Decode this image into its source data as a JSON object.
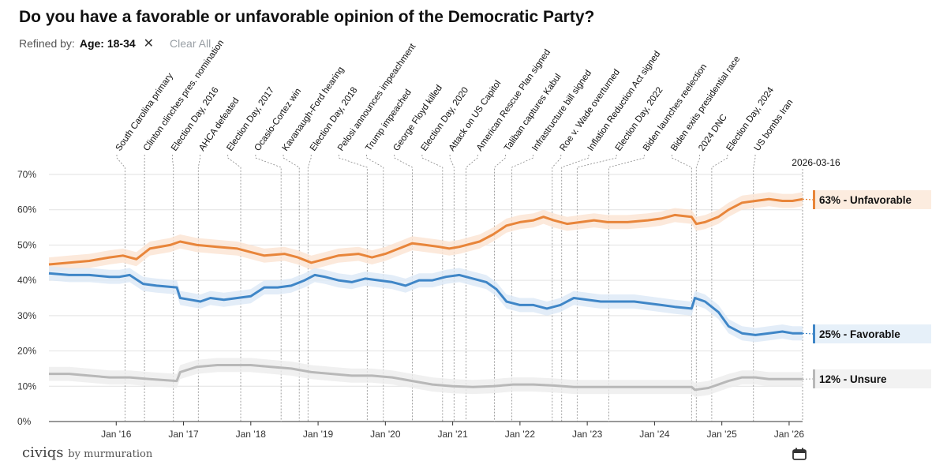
{
  "header": {
    "title": "Do you have a favorable or unfavorable opinion of the Democratic Party?",
    "refined_by_label": "Refined by:",
    "filter_value": "Age: 18-34",
    "remove_filter_glyph": "✕",
    "clear_all_label": "Clear All"
  },
  "footer": {
    "brand": "civiqs",
    "brand_suffix": "by murmuration",
    "calendar_icon": "calendar-icon"
  },
  "colors": {
    "unfavorable": "#e8853a",
    "favorable": "#3f86c7",
    "unsure": "#b8b8b8"
  },
  "chart_data": {
    "type": "line",
    "title": "Do you have a favorable or unfavorable opinion of the Democratic Party?",
    "xlabel": "",
    "ylabel": "",
    "ylim": [
      0,
      70
    ],
    "yticks": [
      0,
      10,
      20,
      30,
      40,
      50,
      60,
      70
    ],
    "ytick_labels": [
      "0%",
      "10%",
      "20%",
      "30%",
      "40%",
      "50%",
      "60%",
      "70%"
    ],
    "xlim": [
      2015.0,
      2026.2
    ],
    "xticks": [
      2016,
      2017,
      2018,
      2019,
      2020,
      2021,
      2022,
      2023,
      2024,
      2025,
      2026
    ],
    "xtick_labels": [
      "Jan '16",
      "Jan '17",
      "Jan '18",
      "Jan '19",
      "Jan '20",
      "Jan '21",
      "Jan '22",
      "Jan '23",
      "Jan '24",
      "Jan '25",
      "Jan '26"
    ],
    "grid": true,
    "end_date_label": "2026-03-16",
    "series": [
      {
        "name": "Unfavorable",
        "end_label": "63% - Unfavorable",
        "color": "#e8853a",
        "points": [
          [
            2015.0,
            44.5
          ],
          [
            2015.3,
            45
          ],
          [
            2015.6,
            45.5
          ],
          [
            2015.9,
            46.5
          ],
          [
            2016.1,
            47
          ],
          [
            2016.3,
            46
          ],
          [
            2016.5,
            49
          ],
          [
            2016.8,
            50
          ],
          [
            2016.95,
            51
          ],
          [
            2017.2,
            50
          ],
          [
            2017.5,
            49.5
          ],
          [
            2017.8,
            49
          ],
          [
            2018.0,
            48
          ],
          [
            2018.2,
            47
          ],
          [
            2018.5,
            47.5
          ],
          [
            2018.7,
            46.5
          ],
          [
            2018.9,
            45
          ],
          [
            2019.1,
            46
          ],
          [
            2019.3,
            47
          ],
          [
            2019.6,
            47.5
          ],
          [
            2019.8,
            46.5
          ],
          [
            2020.0,
            47.5
          ],
          [
            2020.2,
            49
          ],
          [
            2020.4,
            50.5
          ],
          [
            2020.6,
            50
          ],
          [
            2020.8,
            49.5
          ],
          [
            2020.95,
            49
          ],
          [
            2021.1,
            49.5
          ],
          [
            2021.4,
            51
          ],
          [
            2021.6,
            53
          ],
          [
            2021.8,
            55.5
          ],
          [
            2022.0,
            56.5
          ],
          [
            2022.2,
            57
          ],
          [
            2022.35,
            58
          ],
          [
            2022.5,
            57
          ],
          [
            2022.7,
            56
          ],
          [
            2022.9,
            56.5
          ],
          [
            2023.1,
            57
          ],
          [
            2023.3,
            56.5
          ],
          [
            2023.6,
            56.5
          ],
          [
            2023.9,
            57
          ],
          [
            2024.1,
            57.5
          ],
          [
            2024.3,
            58.5
          ],
          [
            2024.55,
            58
          ],
          [
            2024.62,
            56
          ],
          [
            2024.75,
            56.5
          ],
          [
            2024.95,
            58
          ],
          [
            2025.1,
            60
          ],
          [
            2025.3,
            62
          ],
          [
            2025.5,
            62.5
          ],
          [
            2025.7,
            63
          ],
          [
            2025.9,
            62.5
          ],
          [
            2026.05,
            62.5
          ],
          [
            2026.2,
            63
          ]
        ]
      },
      {
        "name": "Favorable",
        "end_label": "25% - Favorable",
        "color": "#3f86c7",
        "points": [
          [
            2015.0,
            42
          ],
          [
            2015.3,
            41.5
          ],
          [
            2015.6,
            41.5
          ],
          [
            2015.9,
            41
          ],
          [
            2016.05,
            41
          ],
          [
            2016.2,
            41.5
          ],
          [
            2016.4,
            39
          ],
          [
            2016.6,
            38.5
          ],
          [
            2016.9,
            38
          ],
          [
            2016.95,
            35
          ],
          [
            2017.1,
            34.5
          ],
          [
            2017.25,
            34
          ],
          [
            2017.4,
            35
          ],
          [
            2017.6,
            34.5
          ],
          [
            2017.8,
            35
          ],
          [
            2018.0,
            35.5
          ],
          [
            2018.2,
            38
          ],
          [
            2018.4,
            38
          ],
          [
            2018.6,
            38.5
          ],
          [
            2018.8,
            40
          ],
          [
            2018.95,
            41.5
          ],
          [
            2019.1,
            41
          ],
          [
            2019.3,
            40
          ],
          [
            2019.5,
            39.5
          ],
          [
            2019.7,
            40.5
          ],
          [
            2019.9,
            40
          ],
          [
            2020.1,
            39.5
          ],
          [
            2020.3,
            38.5
          ],
          [
            2020.5,
            40
          ],
          [
            2020.7,
            40
          ],
          [
            2020.9,
            41
          ],
          [
            2021.1,
            41.5
          ],
          [
            2021.3,
            40.5
          ],
          [
            2021.5,
            39.5
          ],
          [
            2021.65,
            37.5
          ],
          [
            2021.8,
            34
          ],
          [
            2022.0,
            33
          ],
          [
            2022.2,
            33
          ],
          [
            2022.4,
            32
          ],
          [
            2022.6,
            33
          ],
          [
            2022.8,
            35
          ],
          [
            2023.0,
            34.5
          ],
          [
            2023.2,
            34
          ],
          [
            2023.4,
            34
          ],
          [
            2023.7,
            34
          ],
          [
            2023.9,
            33.5
          ],
          [
            2024.1,
            33
          ],
          [
            2024.3,
            32.5
          ],
          [
            2024.55,
            32
          ],
          [
            2024.6,
            35
          ],
          [
            2024.75,
            34
          ],
          [
            2024.95,
            31
          ],
          [
            2025.1,
            27
          ],
          [
            2025.3,
            25
          ],
          [
            2025.5,
            24.5
          ],
          [
            2025.7,
            25
          ],
          [
            2025.9,
            25.5
          ],
          [
            2026.05,
            25
          ],
          [
            2026.2,
            25
          ]
        ]
      },
      {
        "name": "Unsure",
        "end_label": "12% - Unsure",
        "color": "#b8b8b8",
        "points": [
          [
            2015.0,
            13.5
          ],
          [
            2015.3,
            13.5
          ],
          [
            2015.6,
            13
          ],
          [
            2015.9,
            12.5
          ],
          [
            2016.2,
            12.5
          ],
          [
            2016.5,
            12
          ],
          [
            2016.9,
            11.5
          ],
          [
            2016.95,
            14
          ],
          [
            2017.2,
            15.5
          ],
          [
            2017.5,
            16
          ],
          [
            2017.8,
            16
          ],
          [
            2018.0,
            16
          ],
          [
            2018.3,
            15.5
          ],
          [
            2018.6,
            15
          ],
          [
            2018.9,
            14
          ],
          [
            2019.2,
            13.5
          ],
          [
            2019.5,
            13
          ],
          [
            2019.8,
            13
          ],
          [
            2020.1,
            12.5
          ],
          [
            2020.4,
            11.5
          ],
          [
            2020.7,
            10.5
          ],
          [
            2021.0,
            10
          ],
          [
            2021.3,
            9.8
          ],
          [
            2021.6,
            10
          ],
          [
            2021.9,
            10.5
          ],
          [
            2022.2,
            10.5
          ],
          [
            2022.5,
            10.2
          ],
          [
            2022.8,
            9.8
          ],
          [
            2023.1,
            9.8
          ],
          [
            2023.4,
            9.8
          ],
          [
            2023.7,
            9.8
          ],
          [
            2024.0,
            9.8
          ],
          [
            2024.3,
            9.8
          ],
          [
            2024.55,
            9.8
          ],
          [
            2024.6,
            9
          ],
          [
            2024.8,
            9.5
          ],
          [
            2024.95,
            10.5
          ],
          [
            2025.1,
            11.5
          ],
          [
            2025.3,
            12.5
          ],
          [
            2025.5,
            12.5
          ],
          [
            2025.7,
            12
          ],
          [
            2025.9,
            12
          ],
          [
            2026.2,
            12
          ]
        ]
      }
    ],
    "annotations": [
      {
        "date": 2016.13,
        "label": "South Carolina primary"
      },
      {
        "date": 2016.42,
        "label": "Clinton clinches pres. nomination"
      },
      {
        "date": 2016.85,
        "label": "Election Day, 2016"
      },
      {
        "date": 2017.22,
        "label": "AHCA defeated"
      },
      {
        "date": 2017.85,
        "label": "Election Day, 2017"
      },
      {
        "date": 2018.45,
        "label": "Ocasio-Cortez win"
      },
      {
        "date": 2018.72,
        "label": "Kavanaugh-Ford hearing"
      },
      {
        "date": 2018.85,
        "label": "Election Day, 2018"
      },
      {
        "date": 2019.73,
        "label": "Pelosi announces impeachment"
      },
      {
        "date": 2019.97,
        "label": "Trump impeached"
      },
      {
        "date": 2020.4,
        "label": "George Floyd killed"
      },
      {
        "date": 2020.85,
        "label": "Election Day, 2020"
      },
      {
        "date": 2021.02,
        "label": "Attack on US Capitol"
      },
      {
        "date": 2021.2,
        "label": "American Rescue Plan signed"
      },
      {
        "date": 2021.62,
        "label": "Taliban captures Kabul"
      },
      {
        "date": 2021.88,
        "label": "Infrastructure bill signed"
      },
      {
        "date": 2022.48,
        "label": "Roe v. Wade overturned"
      },
      {
        "date": 2022.62,
        "label": "Inflation Reduction Act signed"
      },
      {
        "date": 2022.85,
        "label": "Election Day, 2022"
      },
      {
        "date": 2023.32,
        "label": "Biden launches reelection"
      },
      {
        "date": 2024.55,
        "label": "Biden exits presidential race"
      },
      {
        "date": 2024.62,
        "label": "2024 DNC"
      },
      {
        "date": 2024.85,
        "label": "Election Day, 2024"
      },
      {
        "date": 2025.47,
        "label": "US bombs Iran"
      }
    ]
  }
}
